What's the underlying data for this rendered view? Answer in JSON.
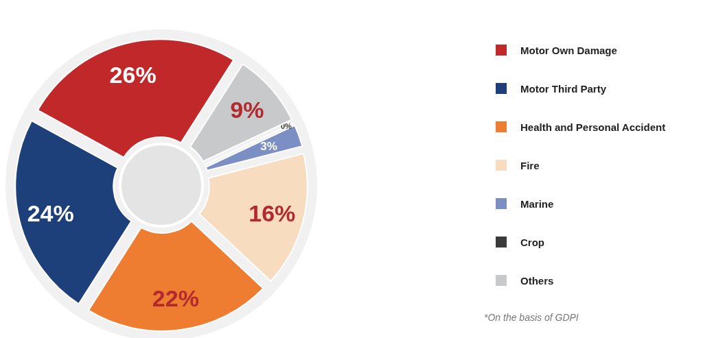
{
  "chart_data": {
    "type": "donut",
    "categories": [
      "Motor Own Damage",
      "Motor Third Party",
      "Health and Personal Accident",
      "Fire",
      "Marine",
      "Crop",
      "Others"
    ],
    "values": [
      26,
      24,
      22,
      16,
      3,
      0,
      9
    ],
    "colors": [
      "#c0282a",
      "#1d3f7a",
      "#ee7d31",
      "#f8dcc0",
      "#7b8fc4",
      "#3a3a3a",
      "#c8c9cb"
    ],
    "value_labels": [
      "26%",
      "24%",
      "22%",
      "16%",
      "3%",
      "0%",
      "9%"
    ],
    "legend": "right",
    "annotations": [
      "*On the basis of GDPI"
    ]
  }
}
